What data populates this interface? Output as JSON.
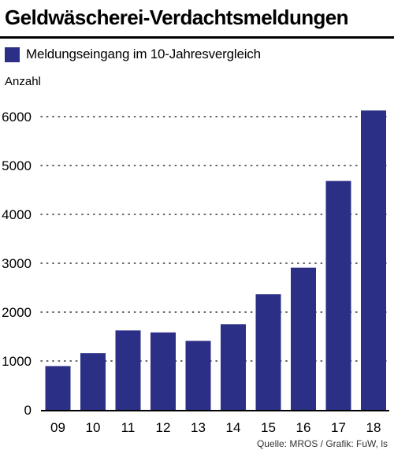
{
  "header": {
    "title": "Geldwäscherei-Verdachtsmeldungen"
  },
  "footer": {
    "source": "Quelle: MROS / Grafik: FuW, ls"
  },
  "colors": {
    "bar": "#2b2f86",
    "grid": "#333333",
    "axis": "#000000"
  },
  "chart_data": {
    "type": "bar",
    "title": "Geldwäscherei-Verdachtsmeldungen",
    "ylabel": "Anzahl",
    "xlabel": "",
    "categories": [
      "09",
      "10",
      "11",
      "12",
      "13",
      "14",
      "15",
      "16",
      "17",
      "18"
    ],
    "series": [
      {
        "name": "Meldungseingang im 10-Jahresvergleich",
        "values": [
          896,
          1159,
          1625,
          1585,
          1411,
          1753,
          2367,
          2909,
          4684,
          6126
        ]
      }
    ],
    "ylim": [
      0,
      6500
    ],
    "yticks": [
      0,
      1000,
      2000,
      3000,
      4000,
      5000,
      6000
    ],
    "grid": "horizontal-dotted",
    "legend_position": "top-left"
  }
}
